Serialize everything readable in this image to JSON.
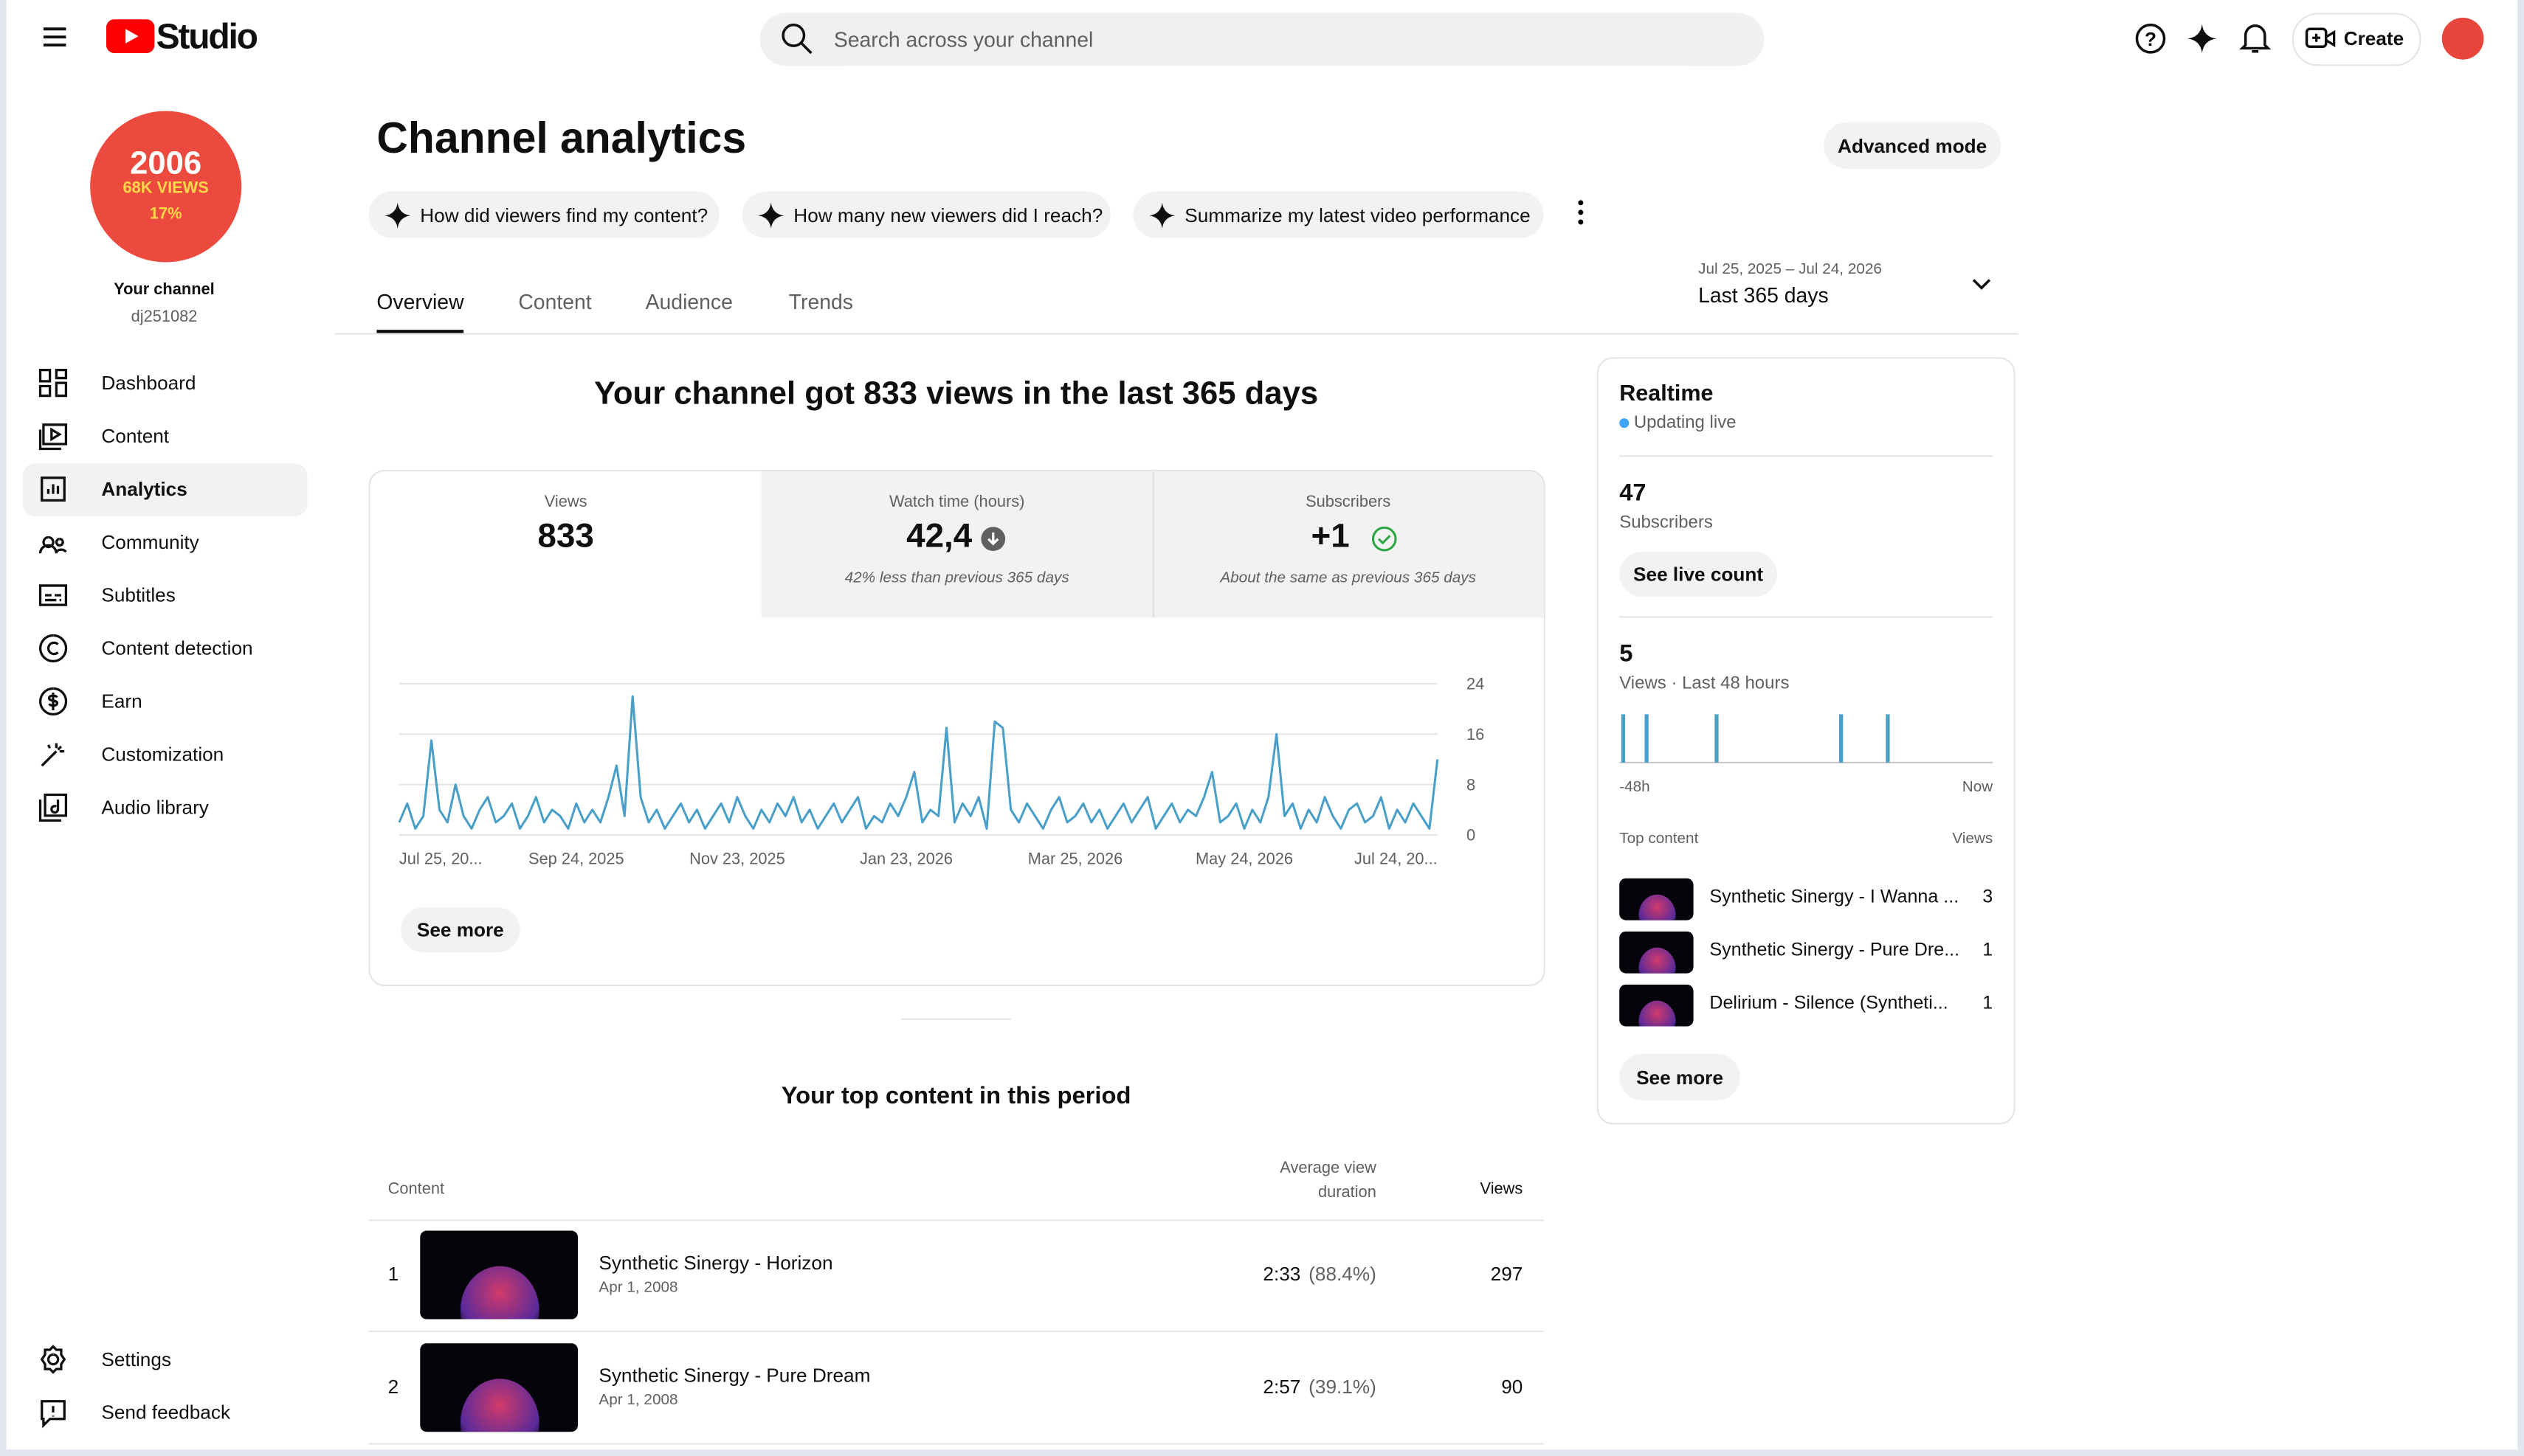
{
  "header": {
    "logo_text": "Studio",
    "search_placeholder": "Search across your channel",
    "create": "Create"
  },
  "sidebar": {
    "avatar": {
      "line1": "2006",
      "line2": "68K VIEWS",
      "line3": "17%"
    },
    "channel_label": "Your channel",
    "channel_handle": "dj251082",
    "nav": [
      "Dashboard",
      "Content",
      "Analytics",
      "Community",
      "Subtitles",
      "Content detection",
      "Earn",
      "Customization",
      "Audio library"
    ],
    "bottom_nav": [
      "Settings",
      "Send feedback"
    ]
  },
  "page": {
    "title": "Channel analytics",
    "advanced_mode": "Advanced mode",
    "suggestions": [
      "How did viewers find my content?",
      "How many new viewers did I reach?",
      "Summarize my latest video performance"
    ],
    "tabs": [
      "Overview",
      "Content",
      "Audience",
      "Trends"
    ],
    "date_range": "Jul 25, 2025 – Jul 24, 2026",
    "date_preset": "Last 365 days"
  },
  "overview": {
    "headline": "Your channel got 833 views in the last 365 days",
    "metrics": [
      {
        "label": "Views",
        "value": "833"
      },
      {
        "label": "Watch time (hours)",
        "value": "42,4",
        "note": "42% less than previous 365 days"
      },
      {
        "label": "Subscribers",
        "value": "+1",
        "note": "About the same as previous 365 days"
      }
    ],
    "see_more": "See more"
  },
  "chart_data": [
    {
      "type": "line",
      "color": "#4a9fc8",
      "grid": true,
      "values": [
        2,
        5,
        1,
        3,
        15,
        4,
        2,
        8,
        3,
        1,
        4,
        6,
        2,
        3,
        5,
        1,
        3,
        6,
        2,
        4,
        3,
        1,
        5,
        2,
        4,
        2,
        6,
        11,
        3,
        22,
        6,
        2,
        4,
        1,
        3,
        5,
        2,
        4,
        1,
        3,
        5,
        2,
        6,
        3,
        1,
        4,
        2,
        5,
        3,
        6,
        2,
        4,
        1,
        3,
        5,
        2,
        4,
        6,
        1,
        3,
        2,
        5,
        3,
        6,
        10,
        2,
        4,
        3,
        17,
        2,
        5,
        3,
        6,
        1,
        18,
        17,
        4,
        2,
        5,
        3,
        1,
        4,
        6,
        2,
        3,
        5,
        2,
        4,
        1,
        3,
        5,
        2,
        4,
        6,
        1,
        3,
        5,
        2,
        4,
        3,
        6,
        10,
        2,
        3,
        5,
        1,
        4,
        2,
        6,
        16,
        3,
        5,
        1,
        4,
        2,
        6,
        3,
        1,
        4,
        5,
        2,
        3,
        6,
        1,
        4,
        2,
        5,
        3,
        1,
        12
      ],
      "xlim": [
        0,
        129
      ],
      "ylim": [
        0,
        24
      ],
      "yticks": [
        0,
        8,
        16,
        24
      ],
      "xticks": [
        {
          "value": 0,
          "label": "Jul 25, 20..."
        },
        {
          "value": 22,
          "label": "Sep 24, 2025"
        },
        {
          "value": 42,
          "label": "Nov 23, 2025"
        },
        {
          "value": 63,
          "label": "Jan 23, 2026"
        },
        {
          "value": 84,
          "label": "Mar 25, 2026"
        },
        {
          "value": 105,
          "label": "May 24, 2026"
        },
        {
          "value": 129,
          "label": "Jul 24, 20..."
        }
      ]
    },
    {
      "type": "bar",
      "color": "#4a9fc8",
      "values": [
        1,
        0,
        0,
        1,
        0,
        0,
        0,
        0,
        0,
        0,
        0,
        0,
        1,
        0,
        0,
        0,
        0,
        0,
        0,
        0,
        0,
        0,
        0,
        0,
        0,
        0,
        0,
        0,
        1,
        0,
        0,
        0,
        0,
        0,
        1,
        0,
        0,
        0,
        0,
        0,
        0,
        0,
        0,
        0,
        0,
        0,
        0,
        0
      ],
      "xlim": [
        0,
        48
      ],
      "ylim": [
        0,
        1
      ],
      "xticks": [
        {
          "value": 0,
          "label": "-48h"
        },
        {
          "value": 48,
          "label": "Now"
        }
      ]
    }
  ],
  "top_content": {
    "title": "Your top content in this period",
    "col_content": "Content",
    "col_avd": "Average view duration",
    "col_views": "Views",
    "rows": [
      {
        "rank": "1",
        "title": "Synthetic Sinergy - Horizon",
        "date": "Apr 1, 2008",
        "avd": "2:33",
        "avd_pct": "(88.4%)",
        "views": "297"
      },
      {
        "rank": "2",
        "title": "Synthetic Sinergy - Pure Dream",
        "date": "Apr 1, 2008",
        "avd": "2:57",
        "avd_pct": "(39.1%)",
        "views": "90"
      }
    ]
  },
  "realtime": {
    "title": "Realtime",
    "status": "Updating live",
    "subscribers": "47",
    "subscribers_label": "Subscribers",
    "see_live_count": "See live count",
    "views": "5",
    "views_label": "Views · Last 48 hours",
    "top_content_label": "Top content",
    "views_col": "Views",
    "items": [
      {
        "title": "Synthetic Sinergy - I Wanna ...",
        "views": "3"
      },
      {
        "title": "Synthetic Sinergy - Pure Dre...",
        "views": "1"
      },
      {
        "title": "Delirium - Silence (Syntheti...",
        "views": "1"
      }
    ],
    "see_more": "See more"
  }
}
